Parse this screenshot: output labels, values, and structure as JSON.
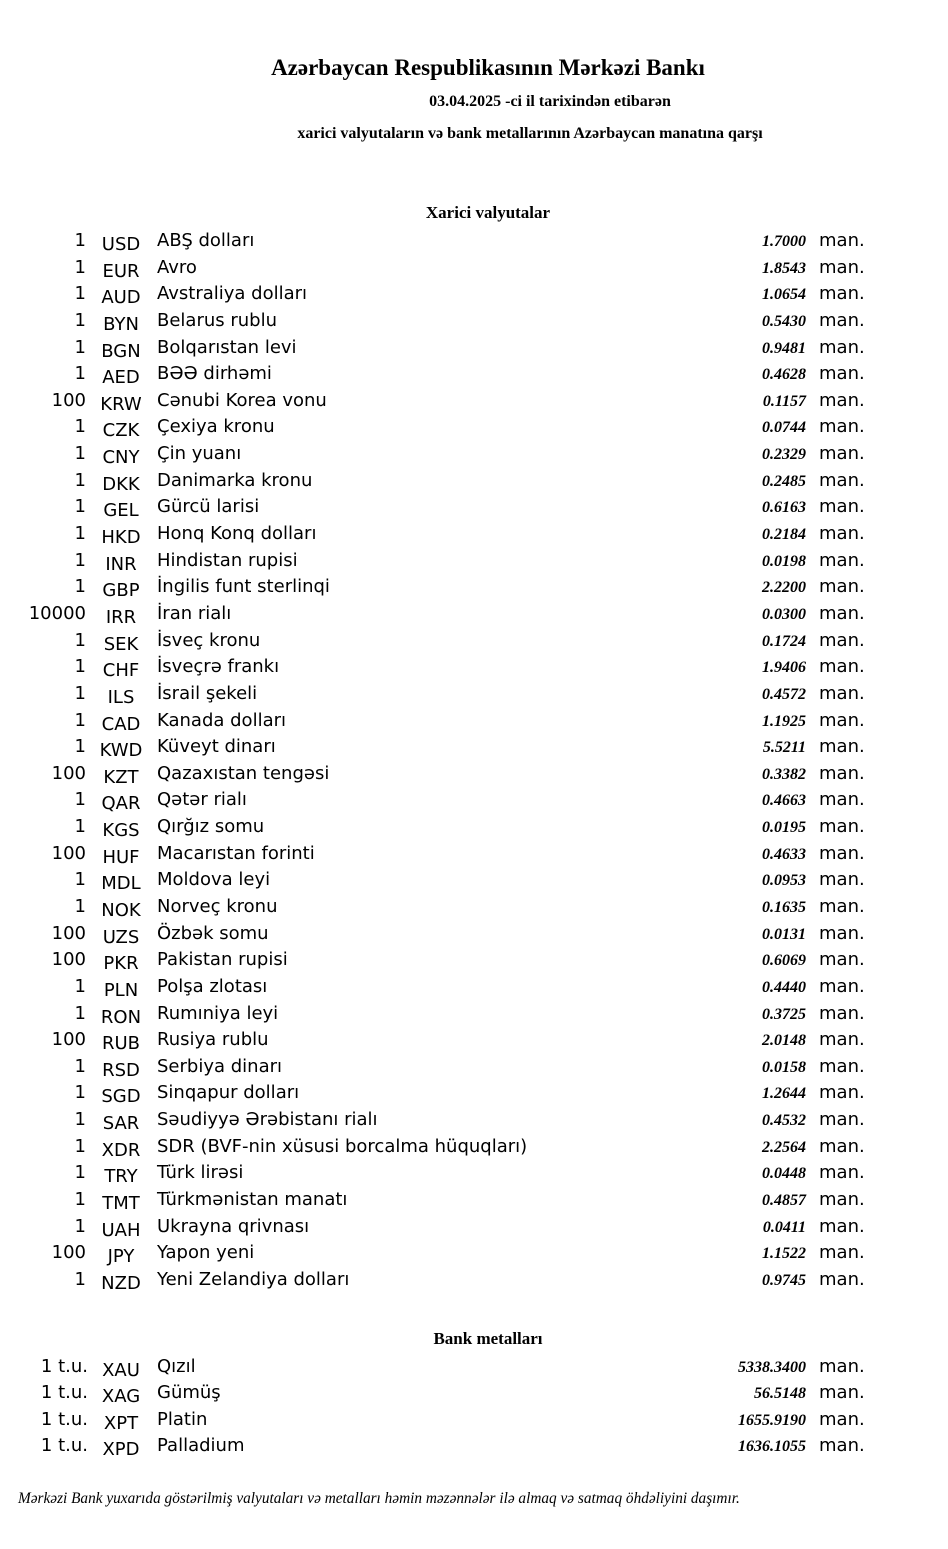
{
  "header": {
    "title": "Azərbaycan Respublikasının Mərkəzi Bankı",
    "date_line": "03.04.2025 -ci il tarixindən etibarən",
    "subtitle": "xarici valyutaların və bank metallarının Azərbaycan manatına qarşı"
  },
  "currency_unit": "man.",
  "foreign_currencies": {
    "heading": "Xarici valyutalar",
    "rows": [
      {
        "nominal": "1",
        "code": "USD",
        "name": "ABŞ dolları",
        "rate": "1.7000"
      },
      {
        "nominal": "1",
        "code": "EUR",
        "name": "Avro",
        "rate": "1.8543"
      },
      {
        "nominal": "1",
        "code": "AUD",
        "name": "Avstraliya dolları",
        "rate": "1.0654"
      },
      {
        "nominal": "1",
        "code": "BYN",
        "name": "Belarus rublu",
        "rate": "0.5430"
      },
      {
        "nominal": "1",
        "code": "BGN",
        "name": "Bolqarıstan levi",
        "rate": "0.9481"
      },
      {
        "nominal": "1",
        "code": "AED",
        "name": "BƏƏ dirhəmi",
        "rate": "0.4628"
      },
      {
        "nominal": "100",
        "code": "KRW",
        "name": "Cənubi Korea vonu",
        "rate": "0.1157"
      },
      {
        "nominal": "1",
        "code": "CZK",
        "name": "Çexiya kronu",
        "rate": "0.0744"
      },
      {
        "nominal": "1",
        "code": "CNY",
        "name": "Çin yuanı",
        "rate": "0.2329"
      },
      {
        "nominal": "1",
        "code": "DKK",
        "name": "Danimarka kronu",
        "rate": "0.2485"
      },
      {
        "nominal": "1",
        "code": "GEL",
        "name": "Gürcü larisi",
        "rate": "0.6163"
      },
      {
        "nominal": "1",
        "code": "HKD",
        "name": "Honq Konq dolları",
        "rate": "0.2184"
      },
      {
        "nominal": "1",
        "code": "INR",
        "name": "Hindistan rupisi",
        "rate": "0.0198"
      },
      {
        "nominal": "1",
        "code": "GBP",
        "name": "İngilis funt sterlinqi",
        "rate": "2.2200"
      },
      {
        "nominal": "10000",
        "code": "IRR",
        "name": "İran rialı",
        "rate": "0.0300"
      },
      {
        "nominal": "1",
        "code": "SEK",
        "name": "İsveç kronu",
        "rate": "0.1724"
      },
      {
        "nominal": "1",
        "code": "CHF",
        "name": "İsveçrə frankı",
        "rate": "1.9406"
      },
      {
        "nominal": "1",
        "code": "ILS",
        "name": "İsrail şekeli",
        "rate": "0.4572"
      },
      {
        "nominal": "1",
        "code": "CAD",
        "name": "Kanada dolları",
        "rate": "1.1925"
      },
      {
        "nominal": "1",
        "code": "KWD",
        "name": "Küveyt dinarı",
        "rate": "5.5211"
      },
      {
        "nominal": "100",
        "code": "KZT",
        "name": "Qazaxıstan tengəsi",
        "rate": "0.3382"
      },
      {
        "nominal": "1",
        "code": "QAR",
        "name": "Qətər rialı",
        "rate": "0.4663"
      },
      {
        "nominal": "1",
        "code": "KGS",
        "name": "Qırğız somu",
        "rate": "0.0195"
      },
      {
        "nominal": "100",
        "code": "HUF",
        "name": "Macarıstan forinti",
        "rate": "0.4633"
      },
      {
        "nominal": "1",
        "code": "MDL",
        "name": "Moldova leyi",
        "rate": "0.0953"
      },
      {
        "nominal": "1",
        "code": "NOK",
        "name": "Norveç kronu",
        "rate": "0.1635"
      },
      {
        "nominal": "100",
        "code": "UZS",
        "name": "Özbək somu",
        "rate": "0.0131"
      },
      {
        "nominal": "100",
        "code": "PKR",
        "name": "Pakistan rupisi",
        "rate": "0.6069"
      },
      {
        "nominal": "1",
        "code": "PLN",
        "name": "Polşa zlotası",
        "rate": "0.4440"
      },
      {
        "nominal": "1",
        "code": "RON",
        "name": "Rumıniya leyi",
        "rate": "0.3725"
      },
      {
        "nominal": "100",
        "code": "RUB",
        "name": "Rusiya rublu",
        "rate": "2.0148"
      },
      {
        "nominal": "1",
        "code": "RSD",
        "name": "Serbiya dinarı",
        "rate": "0.0158"
      },
      {
        "nominal": "1",
        "code": "SGD",
        "name": "Sinqapur dolları",
        "rate": "1.2644"
      },
      {
        "nominal": "1",
        "code": "SAR",
        "name": "Səudiyyə Ərəbistanı rialı",
        "rate": "0.4532"
      },
      {
        "nominal": "1",
        "code": "XDR",
        "name": "SDR (BVF-nin xüsusi borcalma hüquqları)",
        "rate": "2.2564"
      },
      {
        "nominal": "1",
        "code": "TRY",
        "name": "Türk lirəsi",
        "rate": "0.0448"
      },
      {
        "nominal": "1",
        "code": "TMT",
        "name": "Türkmənistan manatı",
        "rate": "0.4857"
      },
      {
        "nominal": "1",
        "code": "UAH",
        "name": "Ukrayna qrivnası",
        "rate": "0.0411"
      },
      {
        "nominal": "100",
        "code": "JPY",
        "name": "Yapon yeni",
        "rate": "1.1522"
      },
      {
        "nominal": "1",
        "code": "NZD",
        "name": "Yeni Zelandiya dolları",
        "rate": "0.9745"
      }
    ]
  },
  "bank_metals": {
    "heading": "Bank metalları",
    "rows": [
      {
        "nominal": "1 t.u.",
        "code": "XAU",
        "name": "Qızıl",
        "rate": "5338.3400"
      },
      {
        "nominal": "1 t.u.",
        "code": "XAG",
        "name": "Gümüş",
        "rate": "56.5148"
      },
      {
        "nominal": "1 t.u.",
        "code": "XPT",
        "name": "Platin",
        "rate": "1655.9190"
      },
      {
        "nominal": "1 t.u.",
        "code": "XPD",
        "name": "Palladium",
        "rate": "1636.1055"
      }
    ]
  },
  "footer": "Mərkəzi Bank yuxarıda göstərilmiş valyutaları və metalları həmin məzənnələr ilə almaq və satmaq öhdəliyini daşımır."
}
